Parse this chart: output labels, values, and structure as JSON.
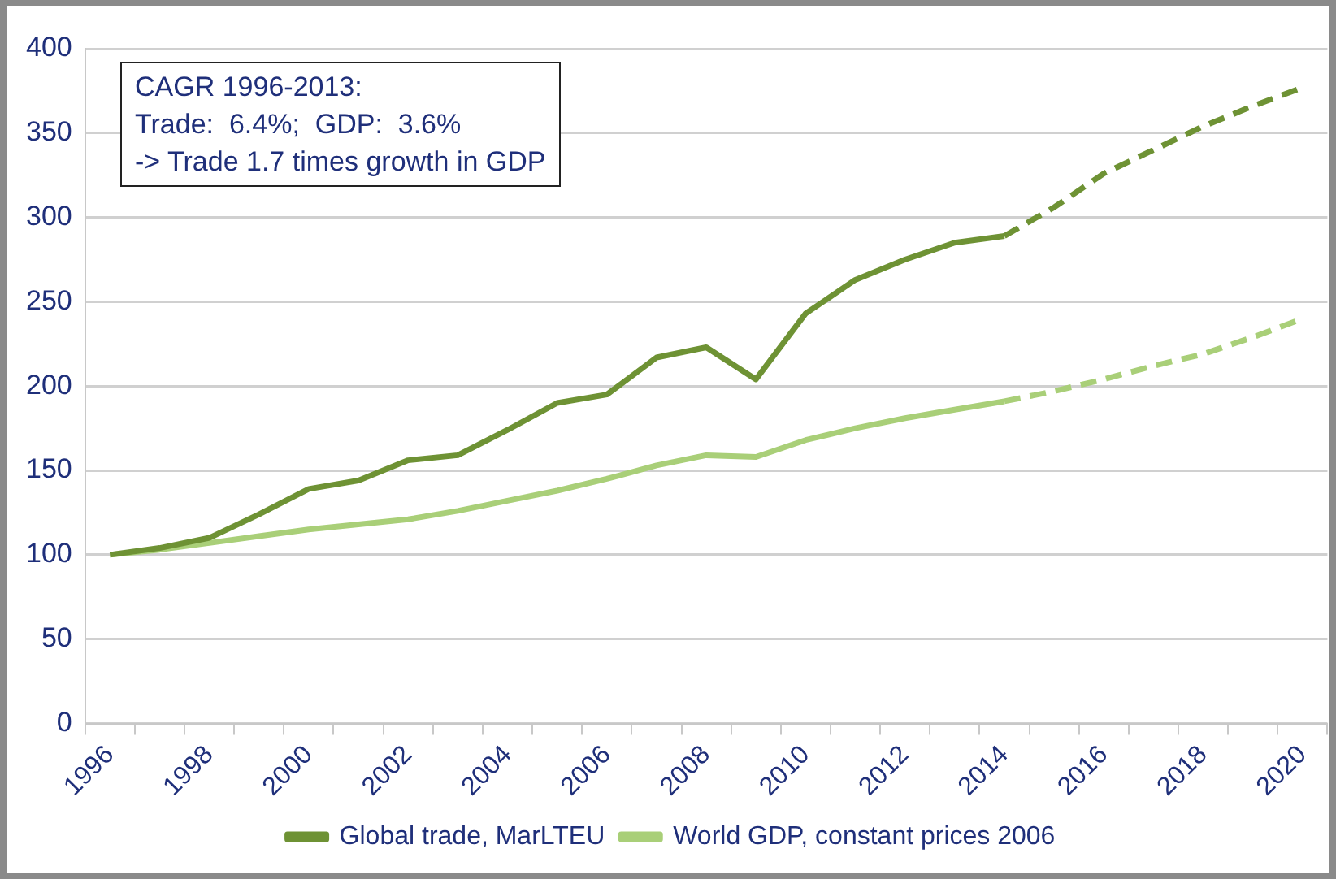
{
  "chart_data": {
    "type": "line",
    "categories": [
      "1996",
      null,
      "1998",
      null,
      "2000",
      null,
      "2002",
      null,
      "2004",
      null,
      "2006",
      null,
      "2008",
      null,
      "2010",
      null,
      "2012",
      null,
      "2014",
      null,
      "2016",
      null,
      "2018",
      null,
      "2020"
    ],
    "series": [
      {
        "name": "Global trade, MarLTEU",
        "color": "#6e9234",
        "line_style": "solid",
        "values": [
          100,
          104,
          110,
          124,
          139,
          144,
          156,
          159,
          174,
          190,
          195,
          217,
          223,
          204,
          243,
          263,
          275,
          285,
          289,
          null,
          null,
          null,
          null,
          null,
          null
        ]
      },
      {
        "name": "World GDP, constant prices 2006",
        "color": "#a9cf78",
        "line_style": "solid",
        "values": [
          100,
          103,
          107,
          111,
          115,
          118,
          121,
          126,
          132,
          138,
          145,
          153,
          159,
          158,
          168,
          175,
          181,
          186,
          191,
          null,
          null,
          null,
          null,
          null,
          null
        ]
      },
      {
        "color": "#6e9234",
        "line_style": "dashed",
        "values": [
          null,
          null,
          null,
          null,
          null,
          null,
          null,
          null,
          null,
          null,
          null,
          null,
          null,
          null,
          null,
          null,
          null,
          null,
          289,
          306,
          326,
          340,
          354,
          366,
          377
        ]
      },
      {
        "color": "#a9cf78",
        "line_style": "dashed",
        "values": [
          null,
          null,
          null,
          null,
          null,
          null,
          null,
          null,
          null,
          null,
          null,
          null,
          null,
          null,
          null,
          null,
          null,
          null,
          191,
          197,
          204,
          212,
          219,
          229,
          240
        ]
      }
    ],
    "ylim": [
      0,
      400
    ],
    "yticks": [
      0,
      50,
      100,
      150,
      200,
      250,
      300,
      350,
      400
    ],
    "grid": "y",
    "legend": "bottom",
    "marker": "none",
    "annotations": [
      "CAGR 1996-2013:",
      "Trade:  6.4%;  GDP:  3.6%",
      "-> Trade 1.7 times growth in GDP"
    ]
  }
}
